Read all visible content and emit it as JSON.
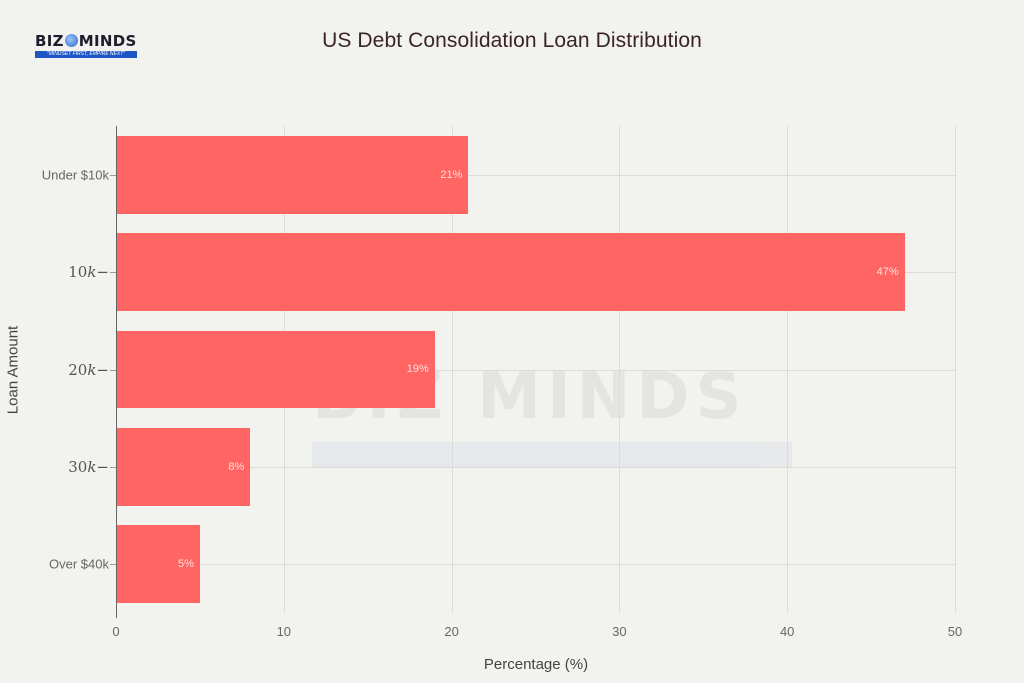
{
  "logo": {
    "brand_left": "BIZ",
    "brand_right": "MINDS",
    "tagline": "\"MINDSET FIRST, EMPIRE NEXT\""
  },
  "watermark": {
    "text": "BIZ MINDS"
  },
  "colors": {
    "background": "#f2f2ee",
    "bar": "#ff6663",
    "title": "#3b2426"
  },
  "chart_data": {
    "type": "bar",
    "orientation": "horizontal",
    "title": "US Debt Consolidation Loan Distribution",
    "xlabel": "Percentage (%)",
    "ylabel": "Loan Amount",
    "categories": [
      "Under $10k",
      "10k–",
      "20k–",
      "30k–",
      "Over $40k"
    ],
    "category_render": [
      {
        "kind": "text",
        "label": "Under $10k"
      },
      {
        "kind": "math",
        "num": "10",
        "var": "k",
        "suffix": "−"
      },
      {
        "kind": "math",
        "num": "20",
        "var": "k",
        "suffix": "−"
      },
      {
        "kind": "math",
        "num": "30",
        "var": "k",
        "suffix": "−"
      },
      {
        "kind": "text",
        "label": "Over $40k"
      }
    ],
    "values": [
      21,
      47,
      19,
      8,
      5
    ],
    "data_labels": [
      "21%",
      "47%",
      "19%",
      "8%",
      "5%"
    ],
    "xlim": [
      0,
      50
    ],
    "xticks": [
      0,
      10,
      20,
      30,
      40,
      50
    ],
    "xtick_labels": [
      "0",
      "10",
      "20",
      "30",
      "40",
      "50"
    ],
    "grid": true,
    "legend": null
  }
}
